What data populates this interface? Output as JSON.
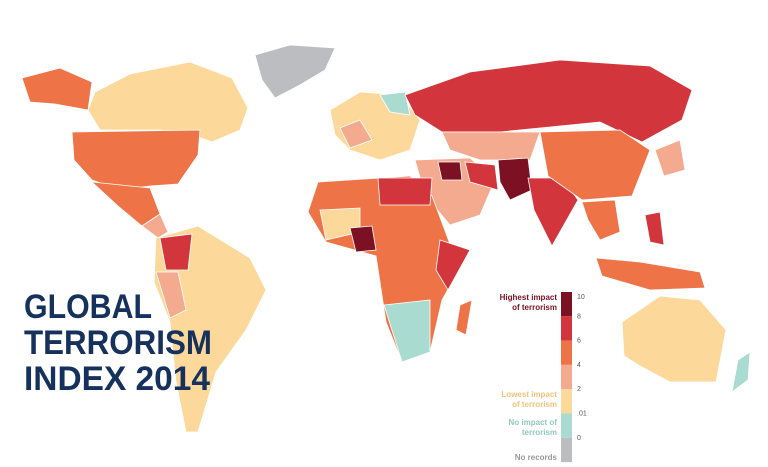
{
  "title": {
    "lines": [
      "GLOBAL",
      "TERRORISM",
      "INDEX 2014"
    ]
  },
  "legend": {
    "highest": [
      "Highest impact",
      "of terrorism"
    ],
    "lowest": [
      "Lowest impact",
      "of terrorism"
    ],
    "none": [
      "No impact of",
      "terrorism"
    ],
    "no_records": "No records",
    "colors": [
      "#7b1123",
      "#d2363c",
      "#ee7448",
      "#f4aa8e",
      "#fcd99a",
      "#a9dbd0",
      "#bcbdc1"
    ],
    "ticks": [
      10,
      8,
      6,
      4,
      2,
      {
        "value": 0.01,
        "label": ".01"
      },
      0
    ]
  }
}
